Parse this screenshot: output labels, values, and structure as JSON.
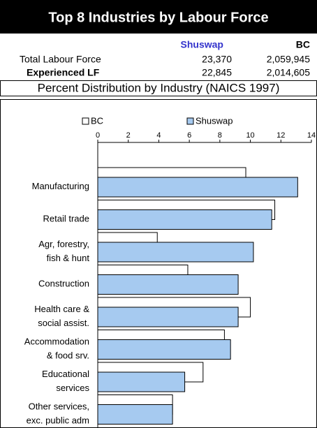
{
  "chart_data": {
    "type": "bar",
    "orientation": "horizontal",
    "title": "Top 8 Industries by Labour Force",
    "subtitle": "Percent Distribution by Industry (NAICS 1997)",
    "categories": [
      [
        "Manufacturing"
      ],
      [
        "Retail trade"
      ],
      [
        "Agr, forestry,",
        "fish & hunt"
      ],
      [
        "Construction"
      ],
      [
        "Health care &",
        "social assist."
      ],
      [
        "Accommodation",
        "& food srv."
      ],
      [
        "Educational",
        "services"
      ],
      [
        "Other services,",
        "exc. public adm"
      ]
    ],
    "series": [
      {
        "name": "BC",
        "color": "#ffffff",
        "values": [
          9.7,
          11.6,
          3.9,
          5.9,
          10.0,
          8.3,
          6.9,
          4.9
        ]
      },
      {
        "name": "Shuswap",
        "color": "#a6caf0",
        "values": [
          13.1,
          11.4,
          10.2,
          9.2,
          9.2,
          8.7,
          5.7,
          4.9
        ]
      }
    ],
    "xlim": [
      0,
      14
    ],
    "xticks": [
      0,
      2,
      4,
      6,
      8,
      10,
      12,
      14
    ]
  },
  "table": {
    "columns": [
      "Shuswap",
      "BC"
    ],
    "rows": [
      {
        "label": "Total Labour Force",
        "values": [
          "23,370",
          "2,059,945"
        ]
      },
      {
        "label": "Experienced LF",
        "values": [
          "22,845",
          "2,014,605"
        ]
      }
    ]
  }
}
